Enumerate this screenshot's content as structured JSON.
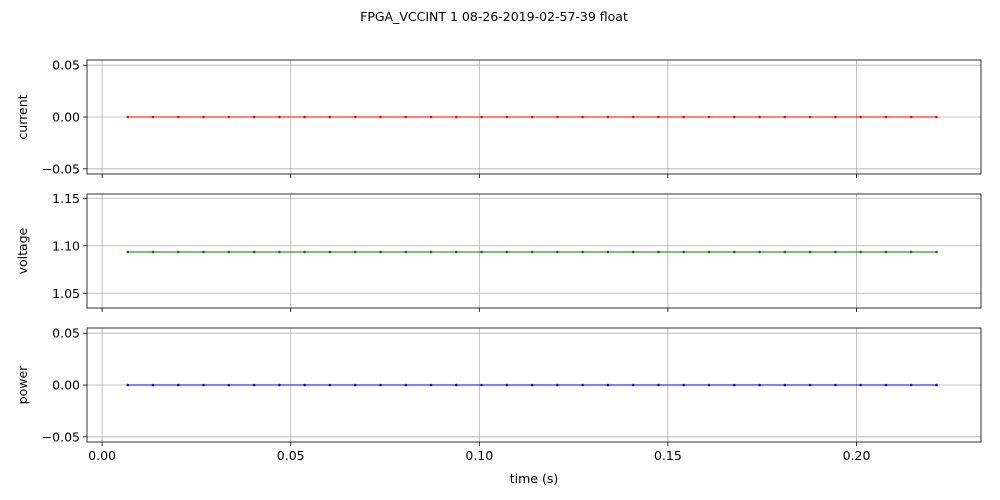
{
  "figure": {
    "title": "FPGA_VCCINT   1   08-26-2019-02-57-39   float",
    "xlabel": "time (s)"
  },
  "chart_data": {
    "type": "line",
    "grid": true,
    "shared_x": true,
    "x": [
      0.0068,
      0.0135,
      0.0202,
      0.0269,
      0.0336,
      0.0403,
      0.047,
      0.0537,
      0.0604,
      0.0671,
      0.0738,
      0.0805,
      0.0872,
      0.0939,
      0.1006,
      0.1073,
      0.114,
      0.1207,
      0.1274,
      0.1341,
      0.1408,
      0.1475,
      0.1542,
      0.1609,
      0.1676,
      0.1743,
      0.181,
      0.1877,
      0.1944,
      0.2011,
      0.2078,
      0.2145,
      0.2212
    ],
    "xlim": [
      -0.004,
      0.233
    ],
    "xticks": [
      0.0,
      0.05,
      0.1,
      0.15,
      0.2
    ],
    "xtick_labels": [
      "0.00",
      "0.05",
      "0.10",
      "0.15",
      "0.20"
    ],
    "subplots": [
      {
        "ylabel": "current",
        "color": "#ff0000",
        "ylim": [
          -0.055,
          0.055
        ],
        "yticks": [
          -0.05,
          0.0,
          0.05
        ],
        "ytick_labels": [
          "−0.05",
          "0.00",
          "0.05"
        ],
        "value": 0.0
      },
      {
        "ylabel": "voltage",
        "color": "#008000",
        "ylim": [
          1.0345,
          1.1545
        ],
        "yticks": [
          1.05,
          1.1,
          1.15
        ],
        "ytick_labels": [
          "1.05",
          "1.10",
          "1.15"
        ],
        "value": 1.0935
      },
      {
        "ylabel": "power",
        "color": "#0000ff",
        "ylim": [
          -0.055,
          0.055
        ],
        "yticks": [
          -0.05,
          0.0,
          0.05
        ],
        "ytick_labels": [
          "−0.05",
          "0.00",
          "0.05"
        ],
        "value": 0.0
      }
    ]
  }
}
